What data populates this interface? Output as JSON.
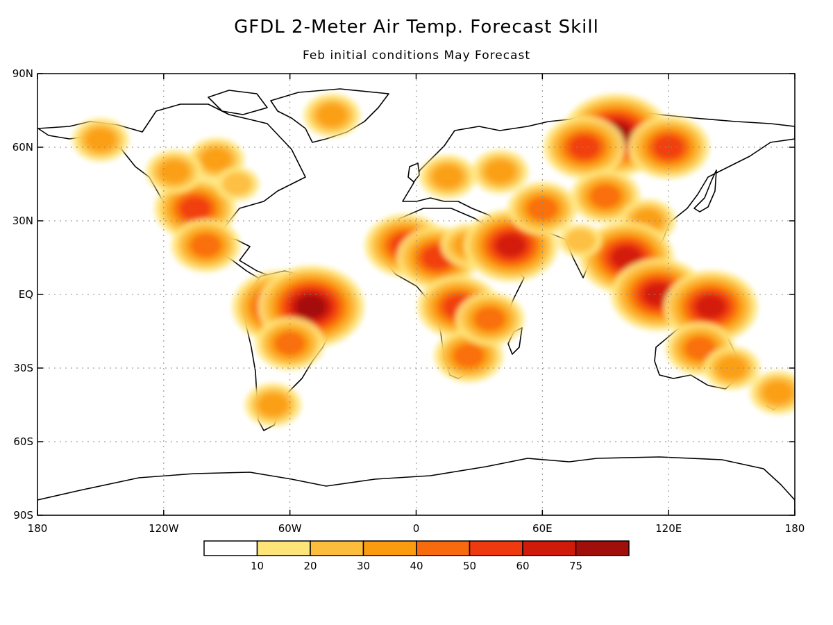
{
  "title": "GFDL 2-Meter Air Temp. Forecast Skill",
  "subtitle": "Feb initial conditions   May Forecast",
  "chart_data": {
    "type": "heatmap",
    "grid": true,
    "x_axis": {
      "range": [
        -180,
        180
      ],
      "ticks": [
        {
          "value": -180,
          "label": "180"
        },
        {
          "value": -120,
          "label": "120W"
        },
        {
          "value": -60,
          "label": "60W"
        },
        {
          "value": 0,
          "label": "0"
        },
        {
          "value": 60,
          "label": "60E"
        },
        {
          "value": 120,
          "label": "120E"
        },
        {
          "value": 180,
          "label": "180"
        }
      ]
    },
    "y_axis": {
      "range": [
        -90,
        90
      ],
      "ticks": [
        {
          "value": 90,
          "label": "90N"
        },
        {
          "value": 60,
          "label": "60N"
        },
        {
          "value": 30,
          "label": "30N"
        },
        {
          "value": 0,
          "label": "EQ"
        },
        {
          "value": -30,
          "label": "30S"
        },
        {
          "value": -60,
          "label": "60S"
        },
        {
          "value": -90,
          "label": "90S"
        }
      ]
    },
    "colorbar": {
      "position": "bottom",
      "bins": [
        {
          "color": "#ffffff"
        },
        {
          "color": "#ffe47a"
        },
        {
          "color": "#fdbd3c"
        },
        {
          "color": "#fb9c10"
        },
        {
          "color": "#f86a0e"
        },
        {
          "color": "#ef3a10"
        },
        {
          "color": "#d01a0a"
        },
        {
          "color": "#a00f0a"
        }
      ],
      "labels": [
        "10",
        "20",
        "30",
        "40",
        "50",
        "60",
        "75"
      ]
    },
    "skill_blobs": [
      {
        "lon": -105,
        "lat": 35,
        "level": 5
      },
      {
        "lon": -95,
        "lat": 55,
        "level": 3
      },
      {
        "lon": -150,
        "lat": 63,
        "level": 3
      },
      {
        "lon": -115,
        "lat": 50,
        "level": 3
      },
      {
        "lon": -100,
        "lat": 20,
        "level": 4
      },
      {
        "lon": -85,
        "lat": 45,
        "level": 2
      },
      {
        "lon": -40,
        "lat": 73,
        "level": 3
      },
      {
        "lon": -65,
        "lat": -5,
        "level": 6
      },
      {
        "lon": -50,
        "lat": -5,
        "level": 7
      },
      {
        "lon": -60,
        "lat": -20,
        "level": 4
      },
      {
        "lon": -68,
        "lat": -45,
        "level": 3
      },
      {
        "lon": -5,
        "lat": 20,
        "level": 5
      },
      {
        "lon": 10,
        "lat": 15,
        "level": 5
      },
      {
        "lon": 25,
        "lat": 20,
        "level": 3
      },
      {
        "lon": 20,
        "lat": -5,
        "level": 5
      },
      {
        "lon": 25,
        "lat": -25,
        "level": 4
      },
      {
        "lon": 35,
        "lat": -10,
        "level": 4
      },
      {
        "lon": 45,
        "lat": 20,
        "level": 6
      },
      {
        "lon": 15,
        "lat": 48,
        "level": 3
      },
      {
        "lon": 40,
        "lat": 50,
        "level": 3
      },
      {
        "lon": 60,
        "lat": 35,
        "level": 4
      },
      {
        "lon": 95,
        "lat": 65,
        "level": 7
      },
      {
        "lon": 80,
        "lat": 60,
        "level": 5
      },
      {
        "lon": 120,
        "lat": 60,
        "level": 5
      },
      {
        "lon": 90,
        "lat": 40,
        "level": 4
      },
      {
        "lon": 110,
        "lat": 30,
        "level": 3
      },
      {
        "lon": 100,
        "lat": 15,
        "level": 6
      },
      {
        "lon": 78,
        "lat": 22,
        "level": 2
      },
      {
        "lon": 115,
        "lat": 0,
        "level": 6
      },
      {
        "lon": 140,
        "lat": -5,
        "level": 6
      },
      {
        "lon": 135,
        "lat": -22,
        "level": 4
      },
      {
        "lon": 150,
        "lat": -30,
        "level": 3
      },
      {
        "lon": 172,
        "lat": -40,
        "level": 3
      }
    ]
  }
}
